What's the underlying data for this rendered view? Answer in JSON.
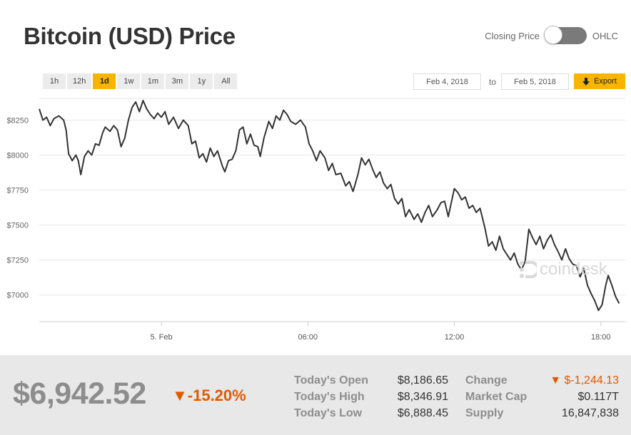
{
  "header": {
    "title": "Bitcoin (USD) Price",
    "toggle_left": "Closing Price",
    "toggle_right": "OHLC"
  },
  "ranges": [
    "1h",
    "12h",
    "1d",
    "1w",
    "1m",
    "3m",
    "1y",
    "All"
  ],
  "active_range": "1d",
  "date_from": "Feb 4, 2018",
  "date_to": "Feb 5, 2018",
  "to_label": "to",
  "export_label": "Export",
  "watermark": "coindesk",
  "colors": {
    "accent": "#f7b500",
    "negative": "#e05a00",
    "line": "#333333"
  },
  "chart_data": {
    "type": "line",
    "x_unit": "hours since 00:00 Feb 5",
    "ylim": [
      6810,
      8420
    ],
    "yticks": [
      {
        "value": 7000,
        "label": "$7000"
      },
      {
        "value": 7250,
        "label": "$7250"
      },
      {
        "value": 7500,
        "label": "$7500"
      },
      {
        "value": 7750,
        "label": "$7750"
      },
      {
        "value": 8000,
        "label": "$8000"
      },
      {
        "value": 8250,
        "label": "$8250"
      }
    ],
    "xticks": [
      {
        "value": 0,
        "label": "5. Feb"
      },
      {
        "value": 6,
        "label": "06:00"
      },
      {
        "value": 12,
        "label": "12:00"
      },
      {
        "value": 18,
        "label": "18:00"
      }
    ],
    "xlim": [
      -5,
      19
    ],
    "points": [
      [
        -5.0,
        8330
      ],
      [
        -4.85,
        8250
      ],
      [
        -4.7,
        8270
      ],
      [
        -4.55,
        8210
      ],
      [
        -4.4,
        8260
      ],
      [
        -4.2,
        8280
      ],
      [
        -4.0,
        8250
      ],
      [
        -3.9,
        8180
      ],
      [
        -3.8,
        8010
      ],
      [
        -3.65,
        7960
      ],
      [
        -3.5,
        8000
      ],
      [
        -3.4,
        7960
      ],
      [
        -3.3,
        7860
      ],
      [
        -3.15,
        7990
      ],
      [
        -3.0,
        8030
      ],
      [
        -2.85,
        8000
      ],
      [
        -2.7,
        8080
      ],
      [
        -2.55,
        8070
      ],
      [
        -2.4,
        8160
      ],
      [
        -2.3,
        8200
      ],
      [
        -2.1,
        8170
      ],
      [
        -1.95,
        8210
      ],
      [
        -1.8,
        8180
      ],
      [
        -1.65,
        8060
      ],
      [
        -1.5,
        8120
      ],
      [
        -1.35,
        8250
      ],
      [
        -1.2,
        8340
      ],
      [
        -1.05,
        8380
      ],
      [
        -0.9,
        8310
      ],
      [
        -0.75,
        8390
      ],
      [
        -0.6,
        8330
      ],
      [
        -0.45,
        8290
      ],
      [
        -0.3,
        8260
      ],
      [
        -0.15,
        8300
      ],
      [
        0.0,
        8270
      ],
      [
        0.15,
        8310
      ],
      [
        0.3,
        8220
      ],
      [
        0.5,
        8270
      ],
      [
        0.7,
        8190
      ],
      [
        0.9,
        8250
      ],
      [
        1.1,
        8210
      ],
      [
        1.25,
        8080
      ],
      [
        1.4,
        8100
      ],
      [
        1.55,
        7980
      ],
      [
        1.7,
        8010
      ],
      [
        1.85,
        7950
      ],
      [
        2.0,
        8050
      ],
      [
        2.15,
        7990
      ],
      [
        2.3,
        8030
      ],
      [
        2.5,
        7920
      ],
      [
        2.6,
        7880
      ],
      [
        2.75,
        7960
      ],
      [
        2.9,
        7970
      ],
      [
        3.05,
        8030
      ],
      [
        3.2,
        8180
      ],
      [
        3.35,
        8200
      ],
      [
        3.5,
        8080
      ],
      [
        3.65,
        8150
      ],
      [
        3.8,
        8070
      ],
      [
        3.95,
        8060
      ],
      [
        4.05,
        7990
      ],
      [
        4.2,
        8120
      ],
      [
        4.4,
        8240
      ],
      [
        4.55,
        8190
      ],
      [
        4.7,
        8280
      ],
      [
        4.85,
        8250
      ],
      [
        5.0,
        8320
      ],
      [
        5.15,
        8290
      ],
      [
        5.3,
        8240
      ],
      [
        5.5,
        8220
      ],
      [
        5.7,
        8250
      ],
      [
        5.9,
        8200
      ],
      [
        6.05,
        8080
      ],
      [
        6.2,
        8030
      ],
      [
        6.35,
        7960
      ],
      [
        6.5,
        8030
      ],
      [
        6.7,
        7980
      ],
      [
        6.85,
        7890
      ],
      [
        7.0,
        7940
      ],
      [
        7.15,
        7860
      ],
      [
        7.35,
        7870
      ],
      [
        7.55,
        7780
      ],
      [
        7.7,
        7810
      ],
      [
        7.85,
        7740
      ],
      [
        8.05,
        7860
      ],
      [
        8.2,
        7980
      ],
      [
        8.35,
        7930
      ],
      [
        8.5,
        7970
      ],
      [
        8.65,
        7900
      ],
      [
        8.8,
        7840
      ],
      [
        8.95,
        7880
      ],
      [
        9.1,
        7800
      ],
      [
        9.25,
        7760
      ],
      [
        9.4,
        7790
      ],
      [
        9.55,
        7690
      ],
      [
        9.7,
        7650
      ],
      [
        9.85,
        7690
      ],
      [
        10.0,
        7560
      ],
      [
        10.15,
        7610
      ],
      [
        10.35,
        7540
      ],
      [
        10.5,
        7580
      ],
      [
        10.65,
        7520
      ],
      [
        10.8,
        7590
      ],
      [
        10.95,
        7640
      ],
      [
        11.1,
        7560
      ],
      [
        11.3,
        7610
      ],
      [
        11.45,
        7660
      ],
      [
        11.6,
        7670
      ],
      [
        11.75,
        7560
      ],
      [
        11.85,
        7640
      ],
      [
        12.0,
        7760
      ],
      [
        12.15,
        7730
      ],
      [
        12.3,
        7680
      ],
      [
        12.45,
        7700
      ],
      [
        12.6,
        7620
      ],
      [
        12.75,
        7640
      ],
      [
        12.9,
        7590
      ],
      [
        13.05,
        7620
      ],
      [
        13.25,
        7480
      ],
      [
        13.4,
        7350
      ],
      [
        13.55,
        7380
      ],
      [
        13.7,
        7320
      ],
      [
        13.85,
        7420
      ],
      [
        14.0,
        7330
      ],
      [
        14.15,
        7290
      ],
      [
        14.3,
        7250
      ],
      [
        14.45,
        7300
      ],
      [
        14.6,
        7220
      ],
      [
        14.75,
        7180
      ],
      [
        14.9,
        7240
      ],
      [
        15.05,
        7470
      ],
      [
        15.2,
        7410
      ],
      [
        15.35,
        7360
      ],
      [
        15.5,
        7420
      ],
      [
        15.65,
        7330
      ],
      [
        15.8,
        7390
      ],
      [
        15.95,
        7430
      ],
      [
        16.1,
        7360
      ],
      [
        16.25,
        7310
      ],
      [
        16.4,
        7250
      ],
      [
        16.55,
        7330
      ],
      [
        16.7,
        7260
      ],
      [
        16.85,
        7220
      ],
      [
        17.0,
        7210
      ],
      [
        17.15,
        7130
      ],
      [
        17.3,
        7190
      ],
      [
        17.45,
        7070
      ],
      [
        17.6,
        7010
      ],
      [
        17.75,
        6960
      ],
      [
        17.9,
        6890
      ],
      [
        18.05,
        6930
      ],
      [
        18.2,
        7070
      ],
      [
        18.3,
        7140
      ],
      [
        18.45,
        7070
      ],
      [
        18.6,
        6990
      ],
      [
        18.75,
        6940
      ]
    ]
  },
  "footer": {
    "price": "$6,942.52",
    "change_pct": "▼-15.20%",
    "today_open_label": "Today's Open",
    "today_open": "$8,186.65",
    "today_high_label": "Today's High",
    "today_high": "$8,346.91",
    "today_low_label": "Today's Low",
    "today_low": "$6,888.45",
    "change_label": "Change",
    "change": "▼ $-1,244.13",
    "market_cap_label": "Market Cap",
    "market_cap": "$0.117T",
    "supply_label": "Supply",
    "supply": "16,847,838"
  }
}
